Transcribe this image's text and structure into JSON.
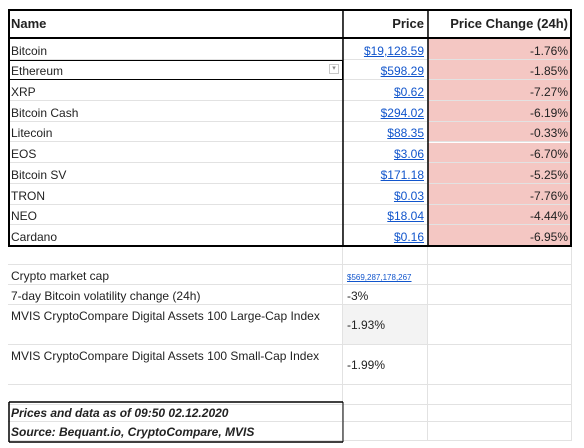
{
  "table": {
    "headers": {
      "name": "Name",
      "price": "Price",
      "change": "Price Change (24h)"
    },
    "rows": [
      {
        "name": "Bitcoin",
        "price": "$19,128.59",
        "change": "-1.76%"
      },
      {
        "name": "Ethereum",
        "price": "$598.29",
        "change": "-1.85%"
      },
      {
        "name": "XRP",
        "price": "$0.62",
        "change": "-7.27%"
      },
      {
        "name": "Bitcoin Cash",
        "price": "$294.02",
        "change": "-6.19%"
      },
      {
        "name": "Litecoin",
        "price": "$88.35",
        "change": "-0.33%"
      },
      {
        "name": "EOS",
        "price": "$3.06",
        "change": "-6.70%"
      },
      {
        "name": "Bitcoin SV",
        "price": "$171.18",
        "change": "-5.25%"
      },
      {
        "name": "TRON",
        "price": "$0.03",
        "change": "-7.76%"
      },
      {
        "name": "NEO",
        "price": "$18.04",
        "change": "-4.44%"
      },
      {
        "name": "Cardano",
        "price": "$0.16",
        "change": "-6.95%"
      }
    ]
  },
  "metrics": {
    "market_cap_label": "Crypto market cap",
    "market_cap_value": "$569,287,178,267",
    "volatility_label": "7-day Bitcoin volatility change (24h)",
    "volatility_value": "-3%",
    "large_cap_label": "MVIS CryptoCompare Digital Assets 100 Large-Cap Index",
    "large_cap_value": "-1.93%",
    "small_cap_label": "MVIS CryptoCompare Digital Assets 100 Small-Cap Index",
    "small_cap_value": "-1.99%"
  },
  "footer": {
    "timestamp_note": "Prices and data as of 09:50 02.12.2020",
    "source_note": "Source: Bequant.io, CryptoCompare, MVIS"
  },
  "colors": {
    "negative_fill": "#f4c7c3",
    "link": "#1155cc",
    "border": "#000000"
  }
}
